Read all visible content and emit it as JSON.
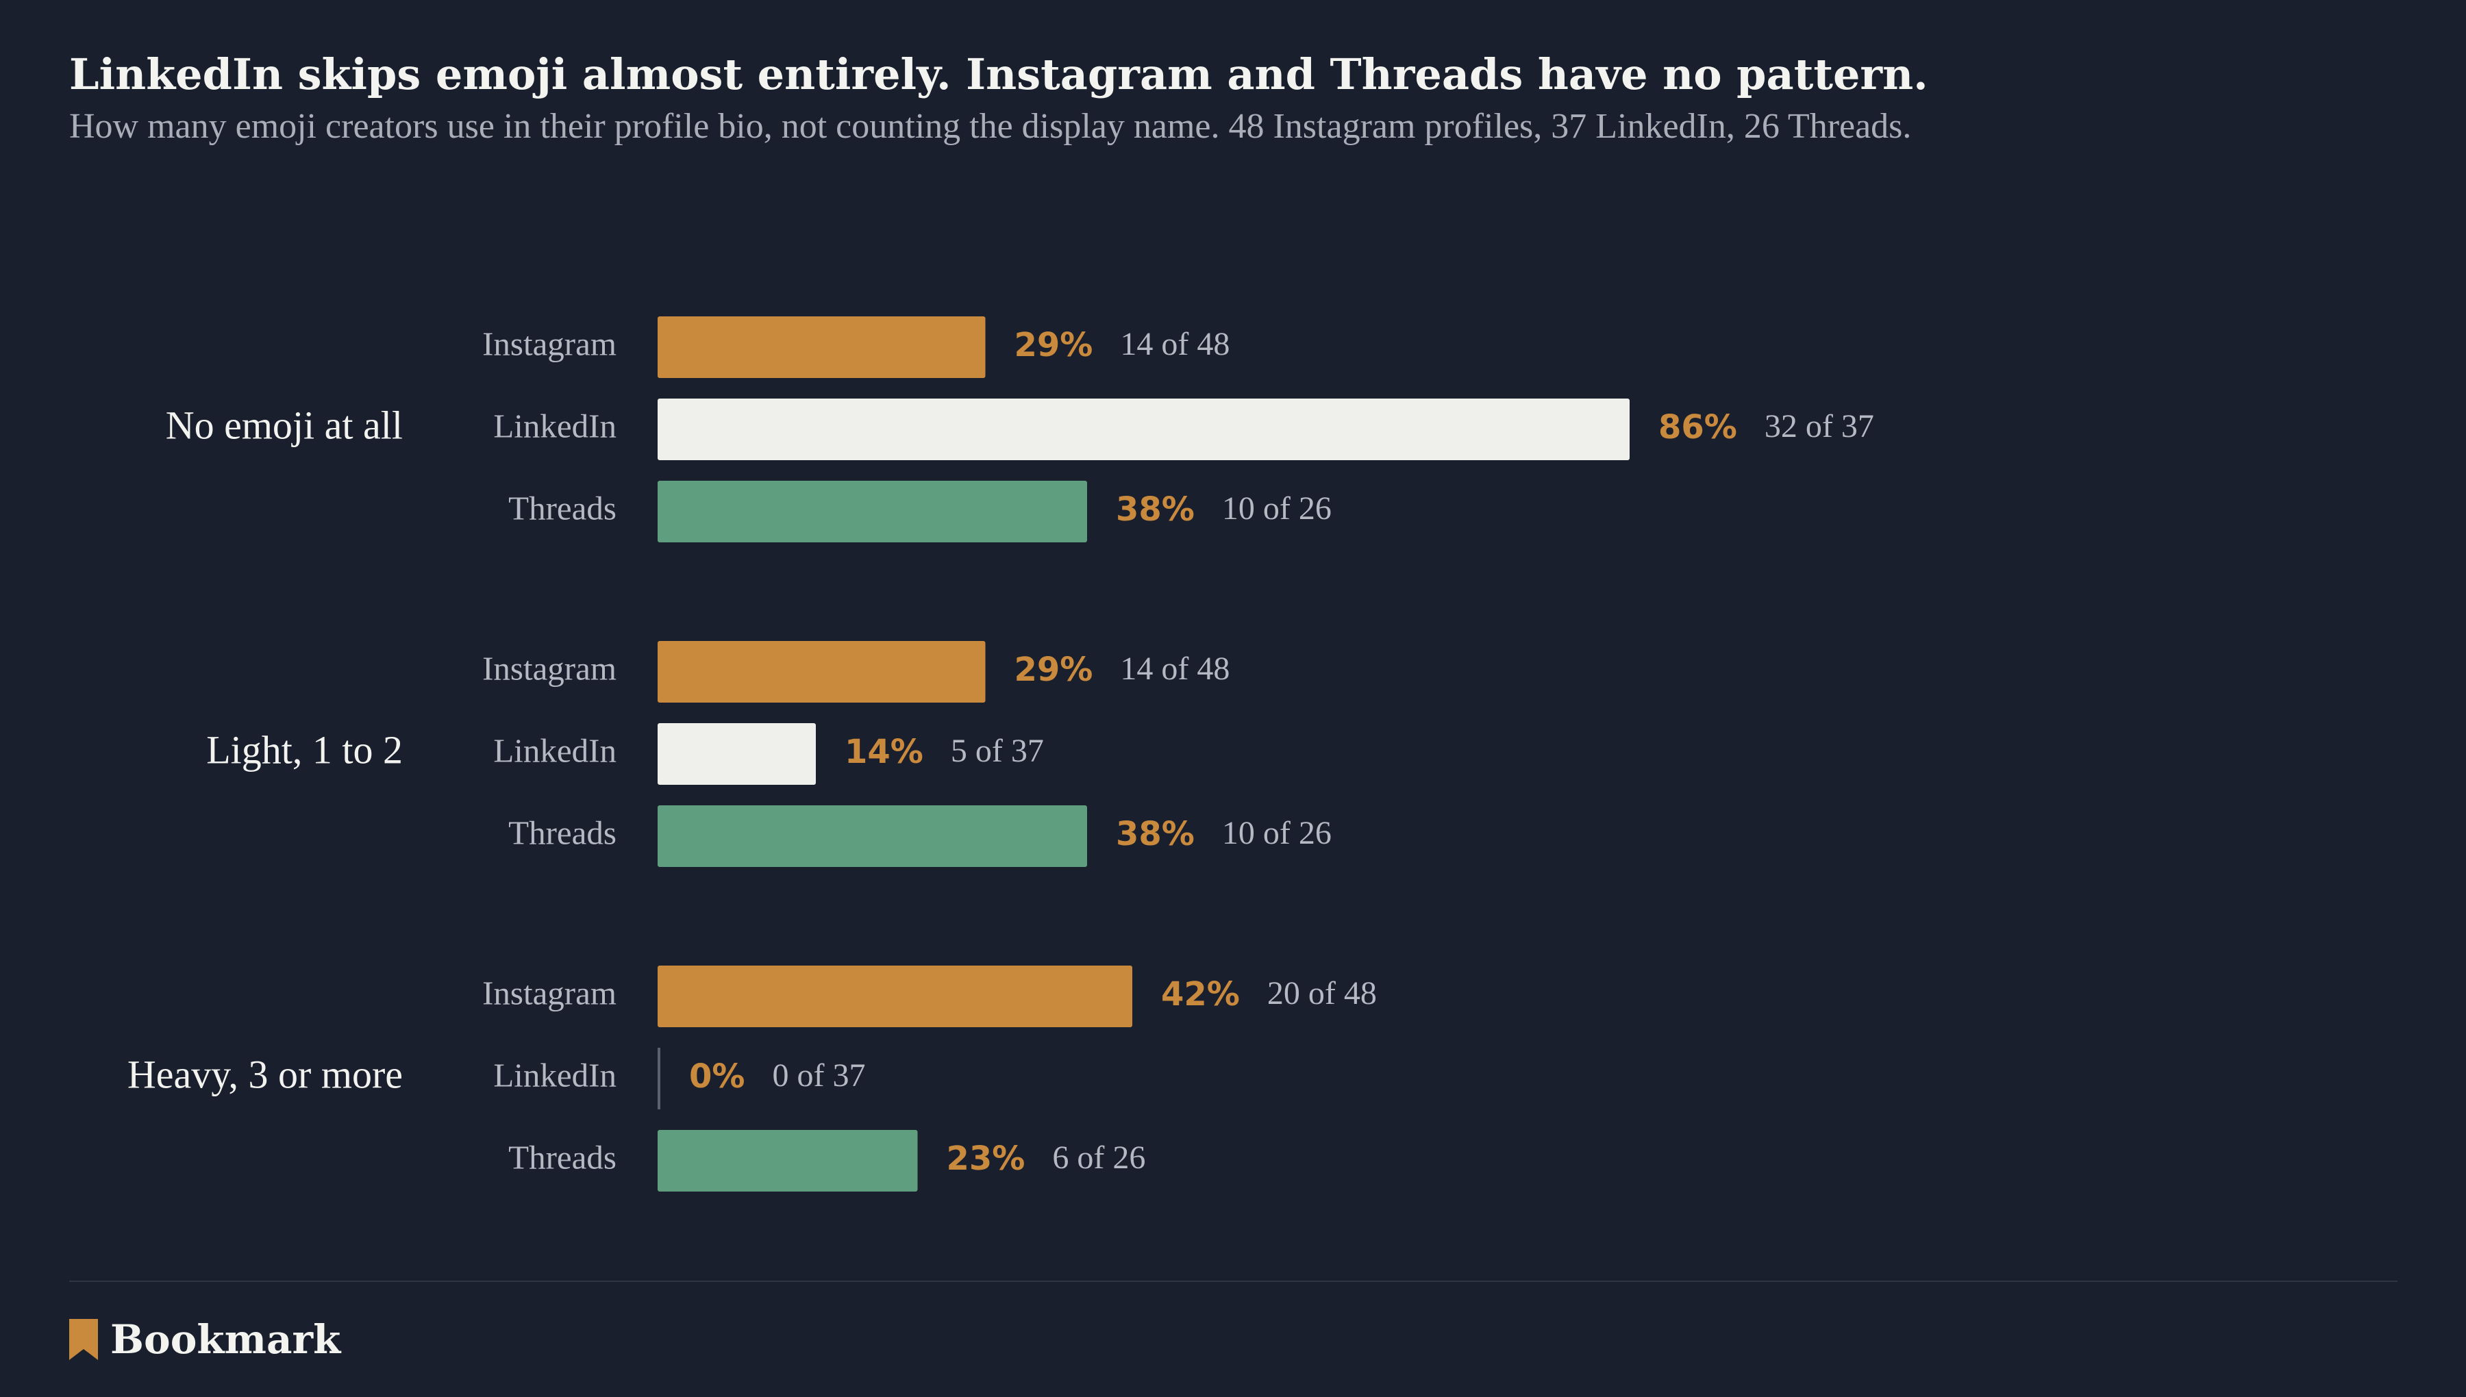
{
  "title": "LinkedIn skips emoji almost entirely. Instagram and Threads have no pattern.",
  "subtitle": "How many emoji creators use in their profile bio, not counting the display name. 48 Instagram profiles, 37 LinkedIn, 26 Threads.",
  "colors": {
    "Instagram": "#c98a3d",
    "LinkedIn": "#eff0eb",
    "Threads": "#5f9f80",
    "percent_text": "#c98a3d",
    "background": "#1a1f2d"
  },
  "chart_data": {
    "type": "bar",
    "orientation": "horizontal",
    "xlim": [
      0,
      100
    ],
    "grid": false,
    "legend": "none",
    "groups": [
      {
        "label": "No emoji at all",
        "bars": [
          {
            "platform": "Instagram",
            "value": 29,
            "pct_label": "29%",
            "count_label": "14 of 48"
          },
          {
            "platform": "LinkedIn",
            "value": 86,
            "pct_label": "86%",
            "count_label": "32 of 37"
          },
          {
            "platform": "Threads",
            "value": 38,
            "pct_label": "38%",
            "count_label": "10 of 26"
          }
        ]
      },
      {
        "label": "Light, 1 to 2",
        "bars": [
          {
            "platform": "Instagram",
            "value": 29,
            "pct_label": "29%",
            "count_label": "14 of 48"
          },
          {
            "platform": "LinkedIn",
            "value": 14,
            "pct_label": "14%",
            "count_label": "5 of 37"
          },
          {
            "platform": "Threads",
            "value": 38,
            "pct_label": "38%",
            "count_label": "10 of 26"
          }
        ]
      },
      {
        "label": "Heavy, 3 or more",
        "bars": [
          {
            "platform": "Instagram",
            "value": 42,
            "pct_label": "42%",
            "count_label": "20 of 48"
          },
          {
            "platform": "LinkedIn",
            "value": 0,
            "pct_label": "0%",
            "count_label": "0 of 37"
          },
          {
            "platform": "Threads",
            "value": 23,
            "pct_label": "23%",
            "count_label": "6 of 26"
          }
        ]
      }
    ]
  },
  "footer": {
    "brand": "Bookmark",
    "icon": "bookmark-icon"
  }
}
